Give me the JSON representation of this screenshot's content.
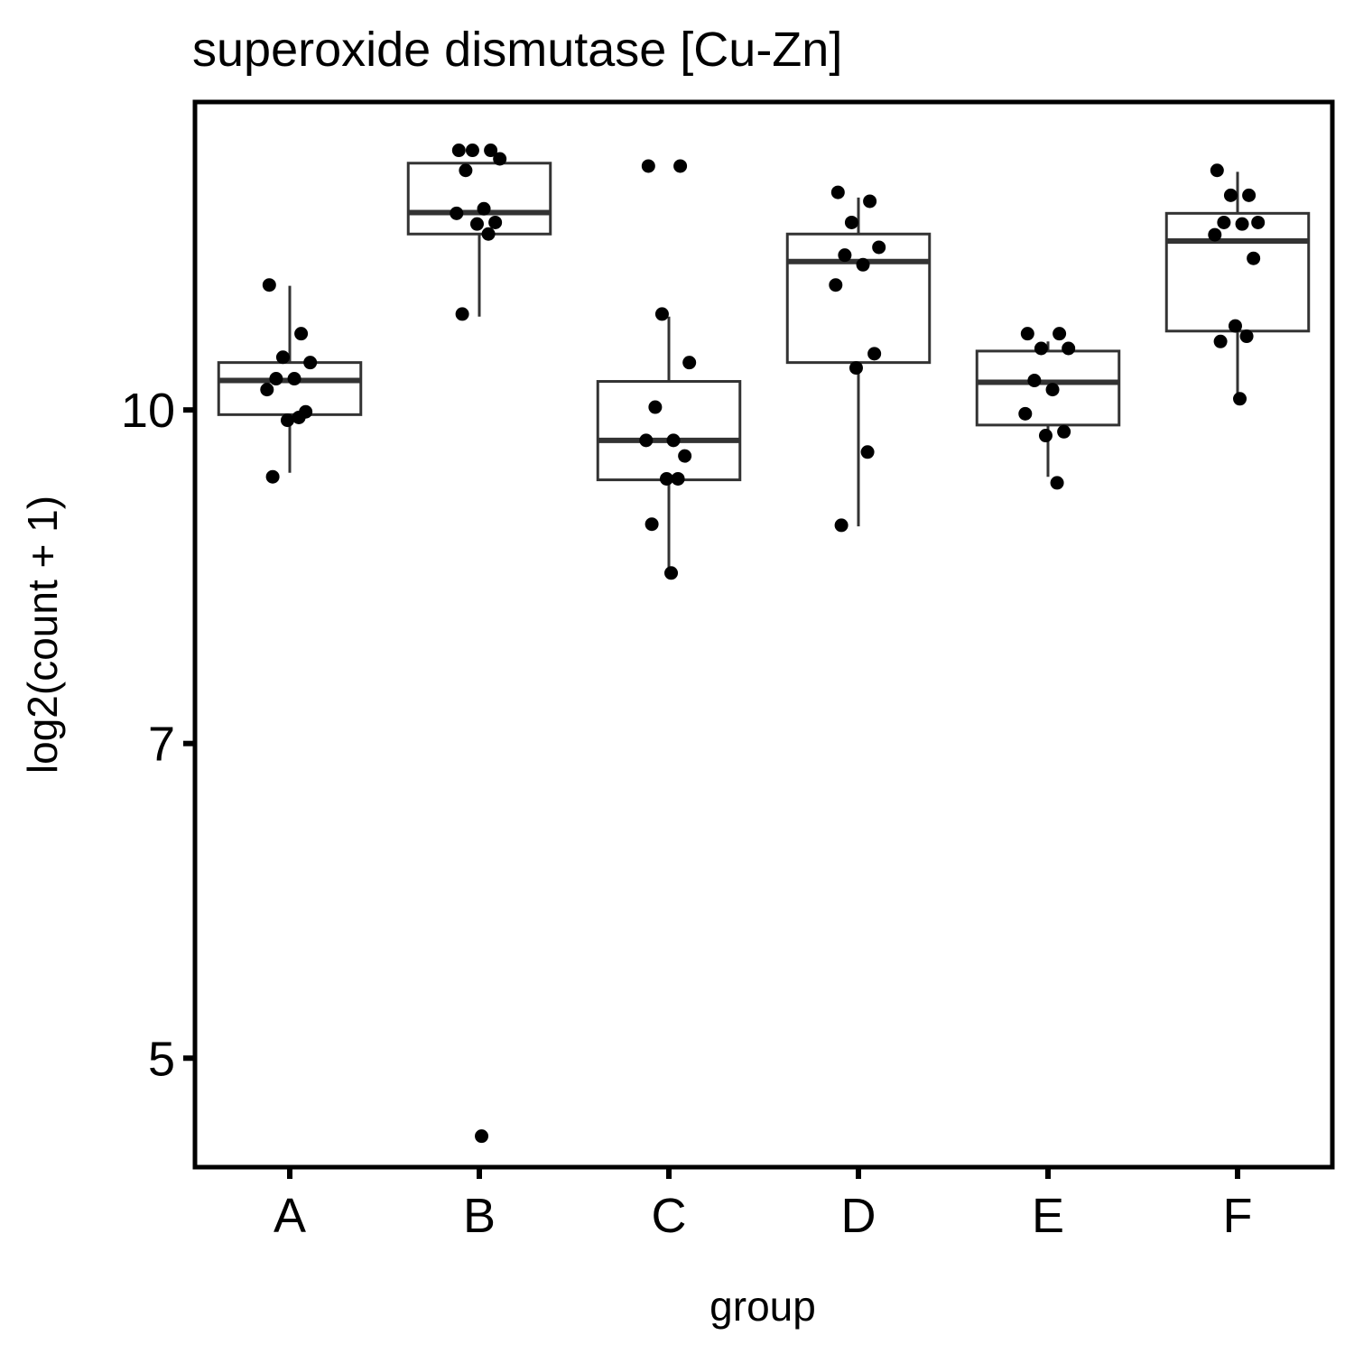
{
  "chart_data": {
    "type": "boxplot",
    "title": "superoxide dismutase [Cu-Zn]",
    "xlabel": "group",
    "ylabel": "log2(count + 1)",
    "y_scale": "log",
    "y_ticks": [
      5,
      7,
      10
    ],
    "ylim": [
      4.45,
      13.9
    ],
    "grid": false,
    "categories": [
      "A",
      "B",
      "C",
      "D",
      "E",
      "F"
    ],
    "boxes": [
      {
        "group": "A",
        "q1": 9.95,
        "median": 10.32,
        "q3": 10.52,
        "whisker_low": 9.35,
        "whisker_high": 11.42
      },
      {
        "group": "B",
        "q1": 12.07,
        "median": 12.35,
        "q3": 13.02,
        "whisker_low": 11.05,
        "whisker_high": 13.02
      },
      {
        "group": "C",
        "q1": 9.28,
        "median": 9.68,
        "q3": 10.31,
        "whisker_low": 8.4,
        "whisker_high": 11.05
      },
      {
        "group": "D",
        "q1": 10.52,
        "median": 11.72,
        "q3": 12.07,
        "whisker_low": 8.83,
        "whisker_high": 12.55
      },
      {
        "group": "E",
        "q1": 9.84,
        "median": 10.3,
        "q3": 10.65,
        "whisker_low": 9.31,
        "whisker_high": 10.76
      },
      {
        "group": "F",
        "q1": 10.88,
        "median": 11.98,
        "q3": 12.34,
        "whisker_low": 10.12,
        "whisker_high": 12.9
      }
    ],
    "points": [
      {
        "group": "A",
        "values": [
          11.43,
          10.85,
          10.58,
          10.52,
          10.34,
          10.34,
          10.22,
          9.98,
          9.89,
          9.92,
          9.31
        ]
      },
      {
        "group": "B",
        "values": [
          13.2,
          13.2,
          13.2,
          13.08,
          12.92,
          12.4,
          12.34,
          12.22,
          12.2,
          12.07,
          11.08,
          4.6
        ]
      },
      {
        "group": "C",
        "values": [
          12.98,
          12.98,
          11.08,
          10.52,
          10.03,
          9.68,
          9.68,
          9.52,
          9.29,
          9.29,
          8.85,
          8.4
        ]
      },
      {
        "group": "D",
        "values": [
          12.62,
          12.5,
          12.22,
          11.9,
          11.8,
          11.68,
          11.43,
          10.62,
          10.46,
          9.56,
          8.84
        ]
      },
      {
        "group": "E",
        "values": [
          10.85,
          10.85,
          10.68,
          10.68,
          10.32,
          10.22,
          9.96,
          9.77,
          9.73,
          9.25
        ]
      },
      {
        "group": "F",
        "values": [
          12.92,
          12.58,
          12.58,
          12.22,
          12.22,
          12.2,
          12.06,
          11.76,
          10.94,
          10.82,
          10.76,
          10.12
        ]
      }
    ]
  }
}
